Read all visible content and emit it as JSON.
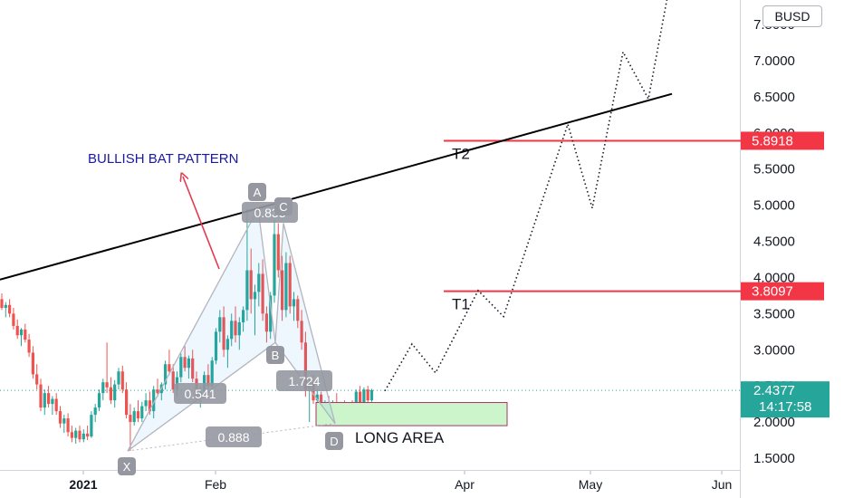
{
  "currency": "BUSD",
  "chart_data": {
    "type": "candlestick",
    "price_axis": {
      "ticks": [
        "7.5000",
        "7.0000",
        "6.5000",
        "6.0000",
        "5.5000",
        "5.0000",
        "4.5000",
        "4.0000",
        "3.5000",
        "3.0000",
        "2.5000",
        "2.0000",
        "1.5000"
      ],
      "ylim": [
        1.3,
        7.8
      ]
    },
    "time_axis": {
      "labels": [
        "2021",
        "Feb",
        "Apr",
        "May",
        "Jun"
      ]
    },
    "current_price": {
      "value": "2.4377",
      "countdown": "14:17:58",
      "numeric": 2.4377
    },
    "targets": [
      {
        "name": "T2",
        "price": "5.8918",
        "numeric": 5.8918
      },
      {
        "name": "T1",
        "price": "3.8097",
        "numeric": 3.8097
      }
    ],
    "pattern": {
      "title": "BULLISH BAT PATTERN",
      "points": [
        {
          "label": "X",
          "price": 1.6
        },
        {
          "label": "A",
          "price": 4.95
        },
        {
          "label": "B",
          "price": 3.1
        },
        {
          "label": "C",
          "price": 4.75
        },
        {
          "label": "D",
          "price": 1.98
        }
      ],
      "ratios": [
        "0.888",
        "0.541",
        "0.833",
        "1.724"
      ]
    },
    "long_area": {
      "label": "LONG AREA",
      "low": 1.95,
      "high": 2.27
    },
    "trendline": {
      "start_price": 3.97,
      "end_price": 6.54
    },
    "projection": [
      2.43,
      3.08,
      2.68,
      3.82,
      3.46,
      6.12,
      4.96,
      7.12,
      6.47,
      7.95
    ],
    "candles": [
      {
        "o": 3.7,
        "h": 3.78,
        "l": 3.55,
        "c": 3.58
      },
      {
        "o": 3.58,
        "h": 3.66,
        "l": 3.45,
        "c": 3.62
      },
      {
        "o": 3.62,
        "h": 3.7,
        "l": 3.45,
        "c": 3.5
      },
      {
        "o": 3.5,
        "h": 3.58,
        "l": 3.28,
        "c": 3.33
      },
      {
        "o": 3.33,
        "h": 3.42,
        "l": 3.15,
        "c": 3.2
      },
      {
        "o": 3.2,
        "h": 3.3,
        "l": 3.05,
        "c": 3.28
      },
      {
        "o": 3.28,
        "h": 3.36,
        "l": 3.1,
        "c": 3.14
      },
      {
        "o": 3.14,
        "h": 3.22,
        "l": 2.9,
        "c": 2.96
      },
      {
        "o": 2.96,
        "h": 3.05,
        "l": 2.6,
        "c": 2.66
      },
      {
        "o": 2.66,
        "h": 2.8,
        "l": 2.45,
        "c": 2.52
      },
      {
        "o": 2.52,
        "h": 2.6,
        "l": 2.15,
        "c": 2.2
      },
      {
        "o": 2.2,
        "h": 2.45,
        "l": 2.1,
        "c": 2.4
      },
      {
        "o": 2.4,
        "h": 2.5,
        "l": 2.2,
        "c": 2.25
      },
      {
        "o": 2.25,
        "h": 2.36,
        "l": 2.1,
        "c": 2.32
      },
      {
        "o": 2.32,
        "h": 2.4,
        "l": 2.1,
        "c": 2.15
      },
      {
        "o": 2.15,
        "h": 2.22,
        "l": 1.92,
        "c": 1.98
      },
      {
        "o": 1.98,
        "h": 2.1,
        "l": 1.85,
        "c": 2.05
      },
      {
        "o": 2.05,
        "h": 2.12,
        "l": 1.8,
        "c": 1.86
      },
      {
        "o": 1.86,
        "h": 1.95,
        "l": 1.72,
        "c": 1.78
      },
      {
        "o": 1.78,
        "h": 1.92,
        "l": 1.7,
        "c": 1.88
      },
      {
        "o": 1.88,
        "h": 1.95,
        "l": 1.72,
        "c": 1.76
      },
      {
        "o": 1.76,
        "h": 1.9,
        "l": 1.72,
        "c": 1.84
      },
      {
        "o": 1.84,
        "h": 1.95,
        "l": 1.75,
        "c": 1.8
      },
      {
        "o": 1.8,
        "h": 2.15,
        "l": 1.78,
        "c": 2.1
      },
      {
        "o": 2.1,
        "h": 2.25,
        "l": 2.0,
        "c": 2.2
      },
      {
        "o": 2.2,
        "h": 2.45,
        "l": 2.15,
        "c": 2.4
      },
      {
        "o": 2.4,
        "h": 2.6,
        "l": 2.3,
        "c": 2.55
      },
      {
        "o": 2.55,
        "h": 3.1,
        "l": 2.4,
        "c": 2.48
      },
      {
        "o": 2.48,
        "h": 2.62,
        "l": 2.25,
        "c": 2.3
      },
      {
        "o": 2.3,
        "h": 2.58,
        "l": 2.2,
        "c": 2.52
      },
      {
        "o": 2.52,
        "h": 2.75,
        "l": 2.45,
        "c": 2.7
      },
      {
        "o": 2.7,
        "h": 2.78,
        "l": 2.4,
        "c": 2.45
      },
      {
        "o": 2.45,
        "h": 2.55,
        "l": 2.05,
        "c": 2.1
      },
      {
        "o": 2.1,
        "h": 2.25,
        "l": 1.6,
        "c": 2.0
      },
      {
        "o": 2.0,
        "h": 2.2,
        "l": 1.95,
        "c": 2.15
      },
      {
        "o": 2.15,
        "h": 2.3,
        "l": 2.0,
        "c": 2.05
      },
      {
        "o": 2.05,
        "h": 2.28,
        "l": 2.0,
        "c": 2.22
      },
      {
        "o": 2.22,
        "h": 2.4,
        "l": 2.15,
        "c": 2.3
      },
      {
        "o": 2.3,
        "h": 2.42,
        "l": 2.1,
        "c": 2.15
      },
      {
        "o": 2.15,
        "h": 2.5,
        "l": 2.05,
        "c": 2.45
      },
      {
        "o": 2.45,
        "h": 2.6,
        "l": 2.35,
        "c": 2.4
      },
      {
        "o": 2.4,
        "h": 2.55,
        "l": 2.3,
        "c": 2.52
      },
      {
        "o": 2.52,
        "h": 2.85,
        "l": 2.45,
        "c": 2.8
      },
      {
        "o": 2.8,
        "h": 3.0,
        "l": 2.65,
        "c": 2.7
      },
      {
        "o": 2.7,
        "h": 2.8,
        "l": 2.4,
        "c": 2.45
      },
      {
        "o": 2.45,
        "h": 2.7,
        "l": 2.35,
        "c": 2.62
      },
      {
        "o": 2.62,
        "h": 2.95,
        "l": 2.55,
        "c": 2.9
      },
      {
        "o": 2.9,
        "h": 3.05,
        "l": 2.7,
        "c": 2.75
      },
      {
        "o": 2.75,
        "h": 2.92,
        "l": 2.6,
        "c": 2.88
      },
      {
        "o": 2.88,
        "h": 3.0,
        "l": 2.55,
        "c": 2.6
      },
      {
        "o": 2.6,
        "h": 2.7,
        "l": 2.3,
        "c": 2.35
      },
      {
        "o": 2.35,
        "h": 2.5,
        "l": 2.2,
        "c": 2.42
      },
      {
        "o": 2.42,
        "h": 2.7,
        "l": 2.35,
        "c": 2.65
      },
      {
        "o": 2.65,
        "h": 2.8,
        "l": 2.45,
        "c": 2.5
      },
      {
        "o": 2.5,
        "h": 2.9,
        "l": 2.45,
        "c": 2.85
      },
      {
        "o": 2.85,
        "h": 3.3,
        "l": 2.8,
        "c": 3.25
      },
      {
        "o": 3.25,
        "h": 3.55,
        "l": 3.1,
        "c": 3.45
      },
      {
        "o": 3.45,
        "h": 3.6,
        "l": 2.9,
        "c": 3.0
      },
      {
        "o": 3.0,
        "h": 3.2,
        "l": 2.75,
        "c": 3.15
      },
      {
        "o": 3.15,
        "h": 3.5,
        "l": 3.05,
        "c": 3.4
      },
      {
        "o": 3.4,
        "h": 3.6,
        "l": 3.1,
        "c": 3.2
      },
      {
        "o": 3.2,
        "h": 3.45,
        "l": 3.0,
        "c": 3.38
      },
      {
        "o": 3.38,
        "h": 3.6,
        "l": 3.25,
        "c": 3.55
      },
      {
        "o": 3.55,
        "h": 4.95,
        "l": 3.4,
        "c": 4.1
      },
      {
        "o": 4.1,
        "h": 4.4,
        "l": 3.5,
        "c": 3.7
      },
      {
        "o": 3.7,
        "h": 3.9,
        "l": 3.2,
        "c": 3.8
      },
      {
        "o": 3.8,
        "h": 4.2,
        "l": 3.6,
        "c": 4.05
      },
      {
        "o": 4.05,
        "h": 4.25,
        "l": 3.4,
        "c": 3.5
      },
      {
        "o": 3.5,
        "h": 3.6,
        "l": 3.1,
        "c": 3.25
      },
      {
        "o": 3.25,
        "h": 3.8,
        "l": 3.15,
        "c": 3.75
      },
      {
        "o": 3.75,
        "h": 4.8,
        "l": 3.65,
        "c": 4.6
      },
      {
        "o": 4.6,
        "h": 4.75,
        "l": 4.0,
        "c": 4.1
      },
      {
        "o": 4.1,
        "h": 4.3,
        "l": 3.4,
        "c": 3.55
      },
      {
        "o": 3.55,
        "h": 4.35,
        "l": 3.45,
        "c": 4.2
      },
      {
        "o": 4.2,
        "h": 4.3,
        "l": 3.5,
        "c": 3.6
      },
      {
        "o": 3.6,
        "h": 3.8,
        "l": 3.4,
        "c": 3.7
      },
      {
        "o": 3.7,
        "h": 3.75,
        "l": 3.3,
        "c": 3.4
      },
      {
        "o": 3.4,
        "h": 3.55,
        "l": 3.0,
        "c": 3.1
      },
      {
        "o": 3.1,
        "h": 3.25,
        "l": 2.35,
        "c": 2.45
      },
      {
        "o": 2.45,
        "h": 2.6,
        "l": 2.0,
        "c": 2.55
      },
      {
        "o": 2.55,
        "h": 2.65,
        "l": 2.25,
        "c": 2.3
      },
      {
        "o": 2.3,
        "h": 2.45,
        "l": 2.15,
        "c": 2.38
      },
      {
        "o": 2.38,
        "h": 2.42,
        "l": 2.05,
        "c": 2.1
      },
      {
        "o": 2.1,
        "h": 2.3,
        "l": 1.98,
        "c": 2.25
      },
      {
        "o": 2.25,
        "h": 2.36,
        "l": 2.02,
        "c": 2.08
      },
      {
        "o": 2.08,
        "h": 2.3,
        "l": 2.0,
        "c": 2.26
      },
      {
        "o": 2.26,
        "h": 2.4,
        "l": 2.1,
        "c": 2.15
      },
      {
        "o": 2.15,
        "h": 2.28,
        "l": 2.05,
        "c": 2.22
      },
      {
        "o": 2.22,
        "h": 2.3,
        "l": 2.08,
        "c": 2.12
      },
      {
        "o": 2.12,
        "h": 2.25,
        "l": 2.05,
        "c": 2.2
      },
      {
        "o": 2.2,
        "h": 2.3,
        "l": 2.12,
        "c": 2.18
      },
      {
        "o": 2.18,
        "h": 2.45,
        "l": 2.15,
        "c": 2.42
      },
      {
        "o": 2.42,
        "h": 2.5,
        "l": 2.22,
        "c": 2.26
      },
      {
        "o": 2.26,
        "h": 2.48,
        "l": 2.2,
        "c": 2.45
      },
      {
        "o": 2.45,
        "h": 2.5,
        "l": 2.25,
        "c": 2.3
      },
      {
        "o": 2.3,
        "h": 2.46,
        "l": 2.28,
        "c": 2.44
      }
    ]
  }
}
